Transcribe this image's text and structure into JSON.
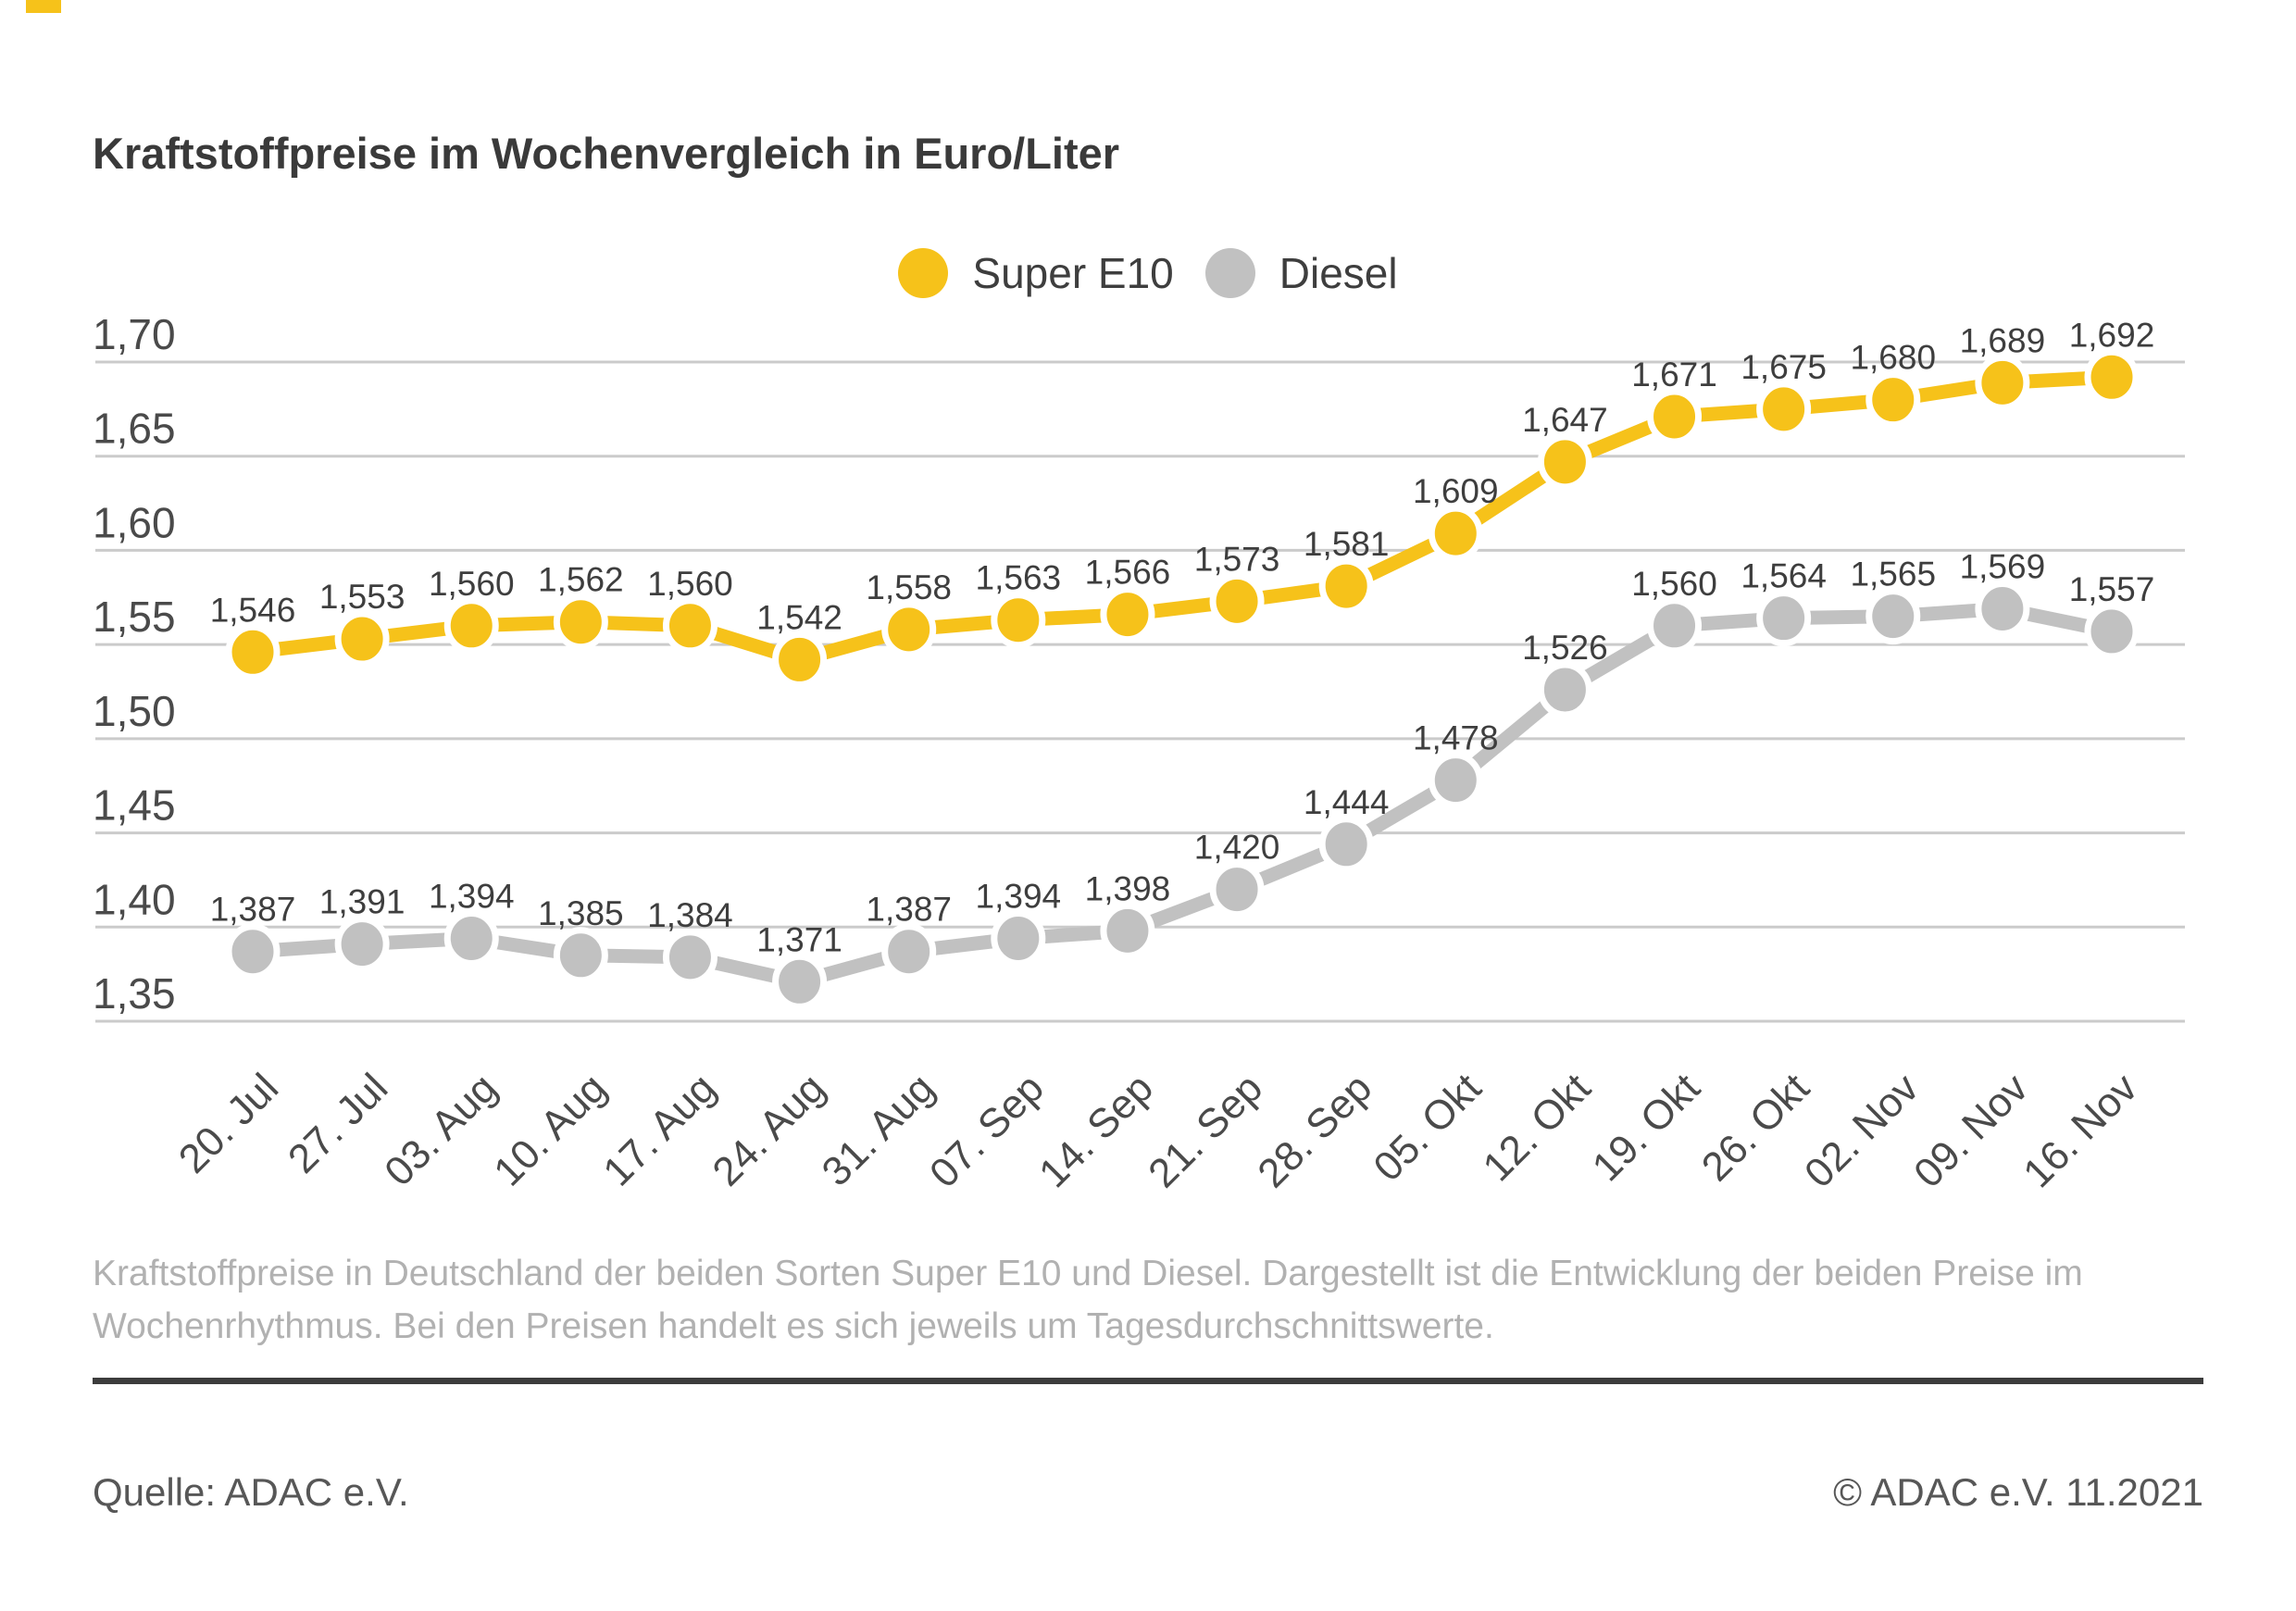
{
  "title": "Kraftstoffpreise im Wochenvergleich in Euro/Liter",
  "caption": "Kraftstoffpreise in Deutschland der beiden Sorten Super E10 und Diesel. Dargestellt ist die Entwicklung der beiden Preise im Wochenrhythmus. Bei den Preisen handelt es sich jeweils um Tagesdurchschnittswerte.",
  "footer": {
    "source": "Quelle: ADAC e.V.",
    "copyright": "© ADAC e.V. 11.2021"
  },
  "colors": {
    "super_e10": "#F6C21A",
    "diesel": "#C1C1C1",
    "grid": "#CBCBCB",
    "tick_text": "#4A4A4A",
    "point_label_text": "#3E3E3E"
  },
  "chart_data": {
    "type": "line",
    "title": "Kraftstoffpreise im Wochenvergleich in Euro/Liter",
    "y_unit": "Euro/Liter",
    "grid": true,
    "legend_position": "top",
    "ylim": [
      1.35,
      1.7
    ],
    "x": [
      "20. Jul",
      "27. Jul",
      "03. Aug",
      "10. Aug",
      "17. Aug",
      "24. Aug",
      "31. Aug",
      "07. Sep",
      "14. Sep",
      "21. Sep",
      "28. Sep",
      "05. Okt",
      "12. Okt",
      "19. Okt",
      "26. Okt",
      "02. Nov",
      "09. Nov",
      "16. Nov"
    ],
    "yticks": [
      {
        "value": 1.7,
        "label": "1,70"
      },
      {
        "value": 1.65,
        "label": "1,65"
      },
      {
        "value": 1.6,
        "label": "1,60"
      },
      {
        "value": 1.55,
        "label": "1,55"
      },
      {
        "value": 1.5,
        "label": "1,50"
      },
      {
        "value": 1.45,
        "label": "1,45"
      },
      {
        "value": 1.4,
        "label": "1,40"
      },
      {
        "value": 1.35,
        "label": "1,35"
      }
    ],
    "series": [
      {
        "name": "Diesel",
        "color": "#C1C1C1",
        "values": [
          1.387,
          1.391,
          1.394,
          1.385,
          1.384,
          1.371,
          1.387,
          1.394,
          1.398,
          1.42,
          1.444,
          1.478,
          1.526,
          1.56,
          1.564,
          1.565,
          1.569,
          1.557
        ],
        "point_labels": [
          "1,387",
          "1,391",
          "1,394",
          "1,385",
          "1,384",
          "1,371",
          "1,387",
          "1,394",
          "1,398",
          "1,420",
          "1,444",
          "1,478",
          "1,526",
          "1,560",
          "1,564",
          "1,565",
          "1,569",
          "1,557"
        ]
      },
      {
        "name": "Super E10",
        "color": "#F6C21A",
        "values": [
          1.546,
          1.553,
          1.56,
          1.562,
          1.56,
          1.542,
          1.558,
          1.563,
          1.566,
          1.573,
          1.581,
          1.609,
          1.647,
          1.671,
          1.675,
          1.68,
          1.689,
          1.692
        ],
        "point_labels": [
          "1,546",
          "1,553",
          "1,560",
          "1,562",
          "1,560",
          "1,542",
          "1,558",
          "1,563",
          "1,566",
          "1,573",
          "1,581",
          "1,609",
          "1,647",
          "1,671",
          "1,675",
          "1,680",
          "1,689",
          "1,692"
        ]
      }
    ]
  }
}
